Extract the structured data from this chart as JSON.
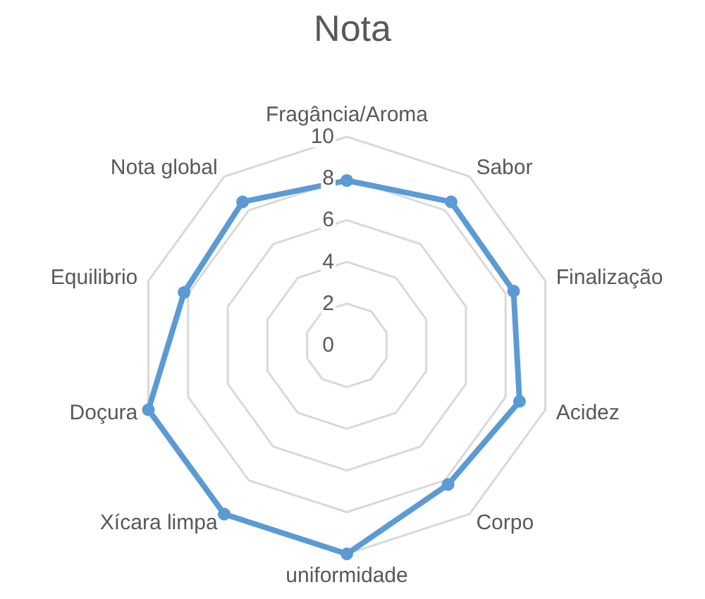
{
  "chart_data": {
    "type": "radar",
    "title": "Nota",
    "categories": [
      "Fragância/Aroma",
      "Sabor",
      "Finalização",
      "Acidez",
      "Corpo",
      "uniformidade",
      "Xícara limpa",
      "Doçura",
      "Equilibrio",
      "Nota global"
    ],
    "series": [
      {
        "color": "#5b9bd5",
        "values": [
          7.9,
          8.5,
          8.4,
          8.7,
          8.25,
          10,
          10,
          10,
          8.2,
          8.5
        ]
      }
    ],
    "ylim": [
      0,
      10
    ],
    "yticks": [
      0,
      2,
      4,
      6,
      8,
      10
    ],
    "grid": true,
    "marker": "circle"
  }
}
